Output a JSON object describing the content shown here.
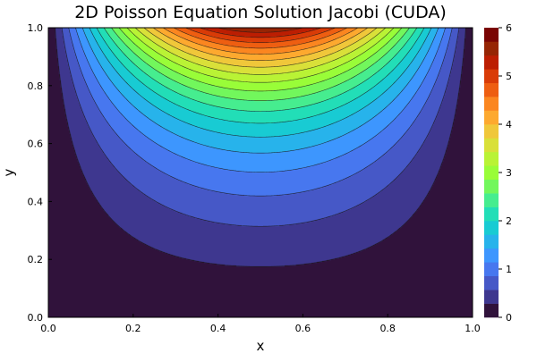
{
  "chart_data": {
    "type": "contour",
    "title": "2D Poisson Equation Solution Jacobi (CUDA)",
    "xlabel": "x",
    "ylabel": "y",
    "xlim": [
      0.0,
      1.0
    ],
    "ylim": [
      0.0,
      1.0
    ],
    "x_ticks": [
      "0.0",
      "0.2",
      "0.4",
      "0.6",
      "0.8",
      "1.0"
    ],
    "y_ticks": [
      "0.0",
      "0.2",
      "0.4",
      "0.6",
      "0.8",
      "1.0"
    ],
    "colorbar": {
      "range": [
        0,
        6
      ],
      "levels": 20,
      "ticks": [
        "0",
        "1",
        "2",
        "3",
        "4",
        "5",
        "6"
      ],
      "colormap": "turbo",
      "colors": [
        "#30123b",
        "#3e378f",
        "#4658c7",
        "#4777ef",
        "#3d96fe",
        "#27b3eb",
        "#18cbd3",
        "#22deb7",
        "#46ed8f",
        "#72f75c",
        "#99fd38",
        "#b9f335",
        "#d9e039",
        "#f0c73a",
        "#fda92f",
        "#fb8620",
        "#ee5e11",
        "#d93b07",
        "#bc1e02",
        "#962504",
        "#7a0403"
      ]
    },
    "boundary_condition": "u = 6·sin(πx) along y = 1, u = 0 on other edges"
  }
}
